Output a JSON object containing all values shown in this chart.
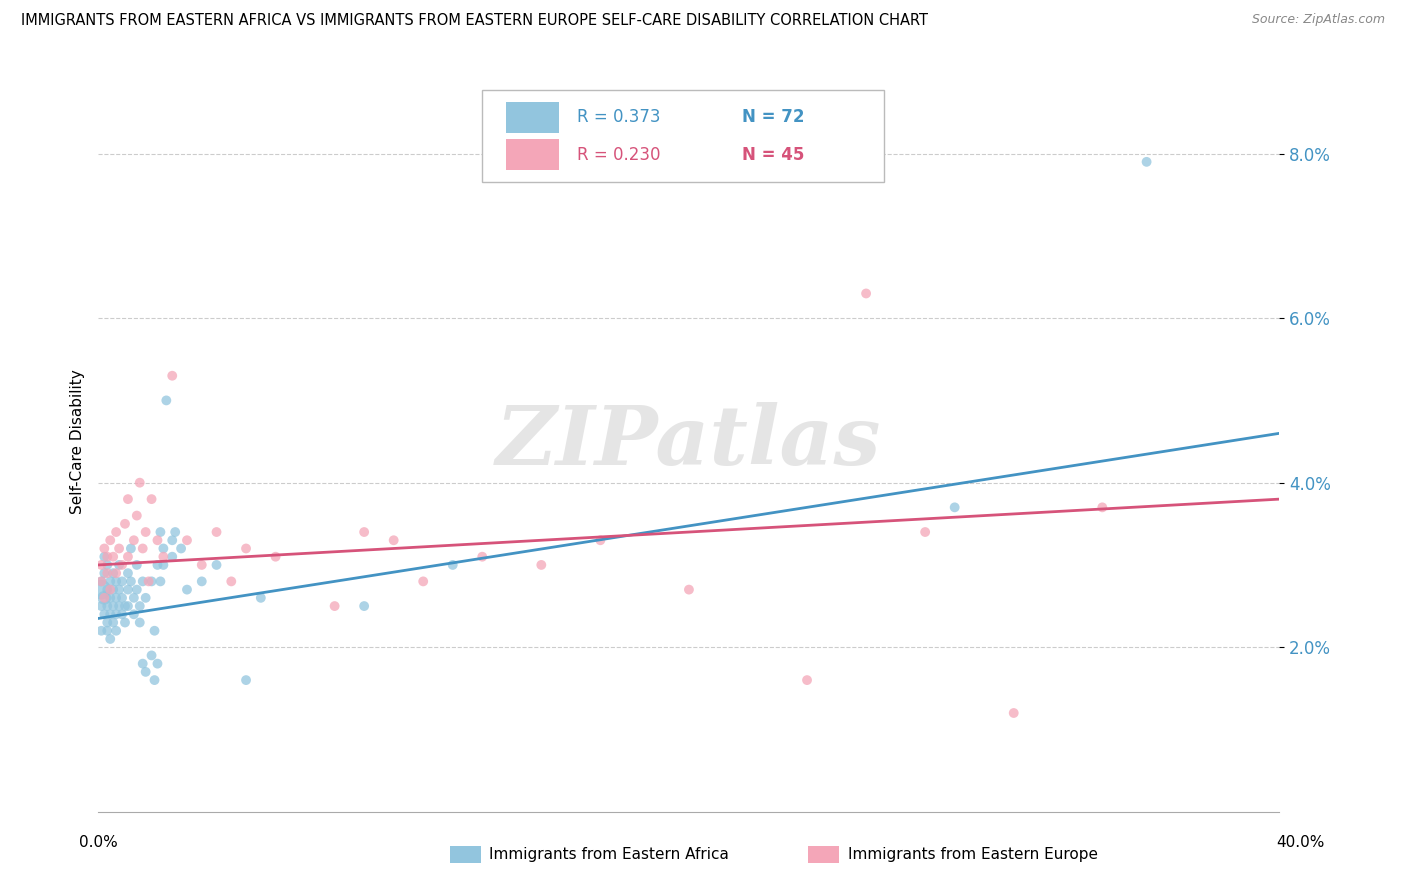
{
  "title": "IMMIGRANTS FROM EASTERN AFRICA VS IMMIGRANTS FROM EASTERN EUROPE SELF-CARE DISABILITY CORRELATION CHART",
  "source": "Source: ZipAtlas.com",
  "ylabel": "Self-Care Disability",
  "xlim": [
    0.0,
    0.4
  ],
  "ylim": [
    0.0,
    0.09
  ],
  "yticks": [
    0.02,
    0.04,
    0.06,
    0.08
  ],
  "ytick_labels": [
    "2.0%",
    "4.0%",
    "6.0%",
    "8.0%"
  ],
  "xtick_labels": [
    "0.0%",
    "40.0%"
  ],
  "legend_r_blue": "R = 0.373",
  "legend_n_blue": "N = 72",
  "legend_r_pink": "R = 0.230",
  "legend_n_pink": "N = 45",
  "color_blue": "#92c5de",
  "color_pink": "#f4a6b8",
  "color_blue_line": "#4393c3",
  "color_pink_line": "#d6537a",
  "color_ytick": "#4393c3",
  "watermark": "ZIPatlas",
  "legend_label_blue": "Immigrants from Eastern Africa",
  "legend_label_pink": "Immigrants from Eastern Europe",
  "blue_points": [
    [
      0.001,
      0.027
    ],
    [
      0.001,
      0.025
    ],
    [
      0.001,
      0.022
    ],
    [
      0.001,
      0.028
    ],
    [
      0.002,
      0.026
    ],
    [
      0.002,
      0.029
    ],
    [
      0.002,
      0.024
    ],
    [
      0.002,
      0.031
    ],
    [
      0.003,
      0.025
    ],
    [
      0.003,
      0.027
    ],
    [
      0.003,
      0.022
    ],
    [
      0.003,
      0.03
    ],
    [
      0.003,
      0.023
    ],
    [
      0.004,
      0.026
    ],
    [
      0.004,
      0.028
    ],
    [
      0.004,
      0.024
    ],
    [
      0.004,
      0.021
    ],
    [
      0.005,
      0.027
    ],
    [
      0.005,
      0.025
    ],
    [
      0.005,
      0.029
    ],
    [
      0.005,
      0.023
    ],
    [
      0.006,
      0.026
    ],
    [
      0.006,
      0.028
    ],
    [
      0.006,
      0.024
    ],
    [
      0.006,
      0.022
    ],
    [
      0.007,
      0.027
    ],
    [
      0.007,
      0.025
    ],
    [
      0.007,
      0.03
    ],
    [
      0.008,
      0.026
    ],
    [
      0.008,
      0.028
    ],
    [
      0.008,
      0.024
    ],
    [
      0.009,
      0.025
    ],
    [
      0.009,
      0.023
    ],
    [
      0.01,
      0.027
    ],
    [
      0.01,
      0.029
    ],
    [
      0.01,
      0.025
    ],
    [
      0.011,
      0.032
    ],
    [
      0.011,
      0.028
    ],
    [
      0.012,
      0.026
    ],
    [
      0.012,
      0.024
    ],
    [
      0.013,
      0.03
    ],
    [
      0.013,
      0.027
    ],
    [
      0.014,
      0.025
    ],
    [
      0.014,
      0.023
    ],
    [
      0.015,
      0.028
    ],
    [
      0.015,
      0.018
    ],
    [
      0.016,
      0.026
    ],
    [
      0.016,
      0.017
    ],
    [
      0.018,
      0.028
    ],
    [
      0.018,
      0.019
    ],
    [
      0.019,
      0.022
    ],
    [
      0.019,
      0.016
    ],
    [
      0.02,
      0.03
    ],
    [
      0.02,
      0.018
    ],
    [
      0.021,
      0.034
    ],
    [
      0.021,
      0.028
    ],
    [
      0.022,
      0.032
    ],
    [
      0.022,
      0.03
    ],
    [
      0.023,
      0.05
    ],
    [
      0.025,
      0.033
    ],
    [
      0.025,
      0.031
    ],
    [
      0.026,
      0.034
    ],
    [
      0.028,
      0.032
    ],
    [
      0.03,
      0.027
    ],
    [
      0.035,
      0.028
    ],
    [
      0.04,
      0.03
    ],
    [
      0.05,
      0.016
    ],
    [
      0.055,
      0.026
    ],
    [
      0.09,
      0.025
    ],
    [
      0.12,
      0.03
    ],
    [
      0.29,
      0.037
    ],
    [
      0.355,
      0.079
    ]
  ],
  "blue_sizes": [
    200,
    50,
    50,
    50,
    100,
    50,
    50,
    50,
    50,
    50,
    50,
    50,
    50,
    50,
    50,
    50,
    50,
    50,
    50,
    50,
    50,
    50,
    50,
    50,
    50,
    50,
    50,
    50,
    50,
    50,
    50,
    50,
    50,
    50,
    50,
    50,
    50,
    50,
    50,
    50,
    50,
    50,
    50,
    50,
    50,
    50,
    50,
    50,
    50,
    50,
    50,
    50,
    50,
    50,
    50,
    50,
    50,
    50,
    50,
    50,
    50,
    50,
    50,
    50,
    50,
    50,
    50,
    50,
    50,
    50,
    50,
    50
  ],
  "pink_points": [
    [
      0.001,
      0.03
    ],
    [
      0.001,
      0.028
    ],
    [
      0.002,
      0.032
    ],
    [
      0.002,
      0.026
    ],
    [
      0.003,
      0.029
    ],
    [
      0.003,
      0.031
    ],
    [
      0.004,
      0.033
    ],
    [
      0.004,
      0.027
    ],
    [
      0.005,
      0.031
    ],
    [
      0.006,
      0.029
    ],
    [
      0.006,
      0.034
    ],
    [
      0.007,
      0.032
    ],
    [
      0.008,
      0.03
    ],
    [
      0.009,
      0.035
    ],
    [
      0.01,
      0.031
    ],
    [
      0.01,
      0.038
    ],
    [
      0.012,
      0.033
    ],
    [
      0.013,
      0.036
    ],
    [
      0.014,
      0.04
    ],
    [
      0.015,
      0.032
    ],
    [
      0.016,
      0.034
    ],
    [
      0.017,
      0.028
    ],
    [
      0.018,
      0.038
    ],
    [
      0.02,
      0.033
    ],
    [
      0.022,
      0.031
    ],
    [
      0.025,
      0.053
    ],
    [
      0.03,
      0.033
    ],
    [
      0.035,
      0.03
    ],
    [
      0.04,
      0.034
    ],
    [
      0.045,
      0.028
    ],
    [
      0.05,
      0.032
    ],
    [
      0.06,
      0.031
    ],
    [
      0.08,
      0.025
    ],
    [
      0.09,
      0.034
    ],
    [
      0.1,
      0.033
    ],
    [
      0.11,
      0.028
    ],
    [
      0.13,
      0.031
    ],
    [
      0.15,
      0.03
    ],
    [
      0.17,
      0.033
    ],
    [
      0.2,
      0.027
    ],
    [
      0.24,
      0.016
    ],
    [
      0.26,
      0.063
    ],
    [
      0.28,
      0.034
    ],
    [
      0.31,
      0.012
    ],
    [
      0.34,
      0.037
    ]
  ],
  "pink_sizes": [
    50,
    50,
    50,
    50,
    50,
    50,
    50,
    50,
    50,
    50,
    50,
    50,
    50,
    50,
    50,
    50,
    50,
    50,
    50,
    50,
    50,
    50,
    50,
    50,
    50,
    50,
    50,
    50,
    50,
    50,
    50,
    50,
    50,
    50,
    50,
    50,
    50,
    50,
    50,
    50,
    50,
    50,
    50,
    50,
    50
  ],
  "blue_line_x": [
    0.0,
    0.4
  ],
  "blue_line_y": [
    0.0235,
    0.046
  ],
  "pink_line_x": [
    0.0,
    0.4
  ],
  "pink_line_y": [
    0.03,
    0.038
  ]
}
